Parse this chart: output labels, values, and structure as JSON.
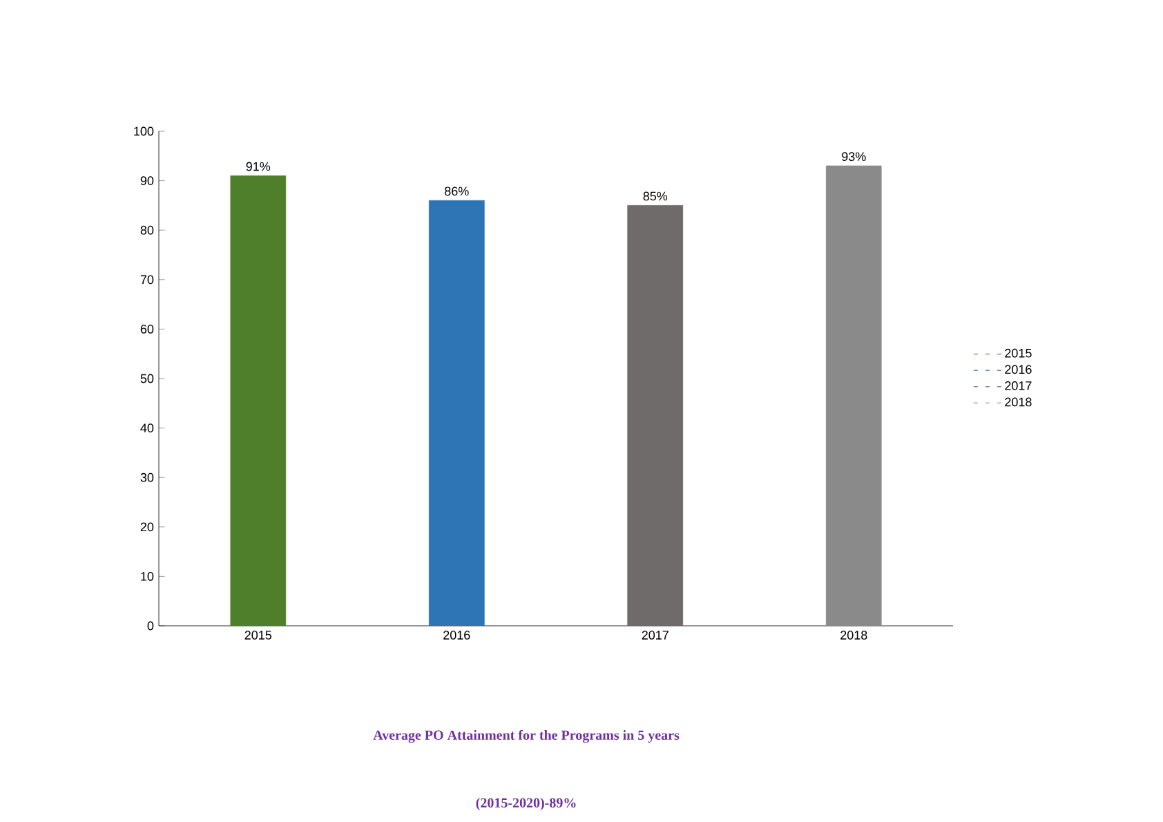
{
  "chart_data": {
    "type": "bar",
    "title": "Average PO Attainment for the Programs in 5 years",
    "subtitle": "(2015-2020)-89%",
    "categories": [
      "2015",
      "2016",
      "2017",
      "2018"
    ],
    "series": [
      {
        "name": "2015",
        "color": "#4f7f2a",
        "values": [
          91,
          null,
          null,
          null
        ],
        "value_labels": [
          "91%",
          null,
          null,
          null
        ]
      },
      {
        "name": "2016",
        "color": "#2e75b6",
        "values": [
          null,
          86,
          null,
          null
        ],
        "value_labels": [
          null,
          "86%",
          null,
          null
        ]
      },
      {
        "name": "2017",
        "color": "#6f6b6b",
        "values": [
          null,
          null,
          85,
          null
        ],
        "value_labels": [
          null,
          null,
          "85%",
          null
        ]
      },
      {
        "name": "2018",
        "color": "#8a8a8a",
        "values": [
          null,
          null,
          null,
          93
        ],
        "value_labels": [
          null,
          null,
          null,
          "93%"
        ]
      }
    ],
    "ylim": [
      0,
      100
    ],
    "yticks": [
      0,
      10,
      20,
      30,
      40,
      50,
      60,
      70,
      80,
      90,
      100
    ],
    "grid": false,
    "legend": "right"
  }
}
